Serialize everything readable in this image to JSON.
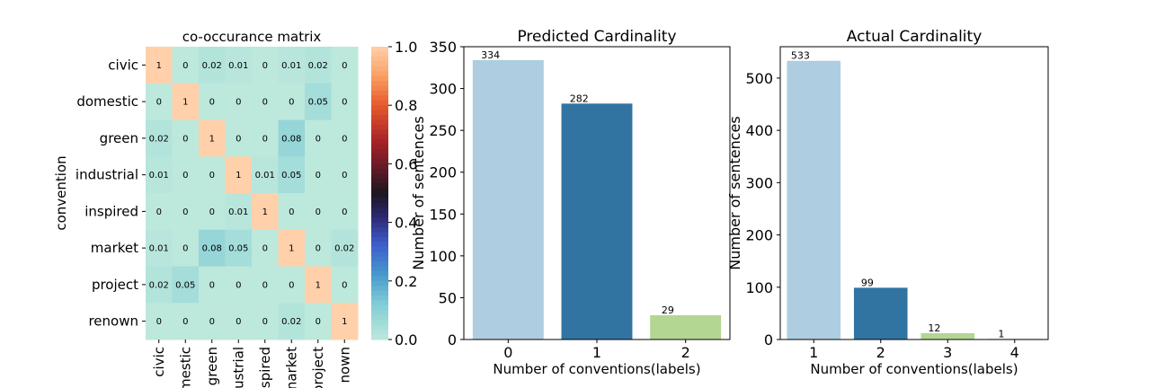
{
  "chart_data": [
    {
      "type": "heatmap",
      "title": "co-occurance matrix",
      "ylabel": "convention",
      "xlabel": "",
      "row_labels": [
        "civic",
        "domestic",
        "green",
        "industrial",
        "inspired",
        "market",
        "project",
        "renown"
      ],
      "col_labels": [
        "civic",
        "mestic",
        "green",
        "ustrial",
        "spired",
        "narket",
        "project",
        "nown"
      ],
      "values": [
        [
          1,
          0,
          0.02,
          0.01,
          0,
          0.01,
          0.02,
          0
        ],
        [
          0,
          1,
          0,
          0,
          0,
          0,
          0.05,
          0
        ],
        [
          0.02,
          0,
          1,
          0,
          0,
          0.08,
          0,
          0
        ],
        [
          0.01,
          0,
          0,
          1,
          0.01,
          0.05,
          0,
          0
        ],
        [
          0,
          0,
          0,
          0.01,
          1,
          0,
          0,
          0
        ],
        [
          0.01,
          0,
          0.08,
          0.05,
          0,
          1,
          0,
          0.02
        ],
        [
          0.02,
          0.05,
          0,
          0,
          0,
          0,
          1,
          0
        ],
        [
          0,
          0,
          0,
          0,
          0,
          0.02,
          0,
          1
        ]
      ],
      "colorbar": {
        "min": 0.0,
        "max": 1.0,
        "ticks": [
          "0.0",
          "0.2",
          "0.4",
          "0.6",
          "0.8",
          "1.0"
        ],
        "colormap": "icefire"
      }
    },
    {
      "type": "bar",
      "title": "Predicted Cardinality",
      "xlabel": "Number of conventions(labels)",
      "ylabel": "Number of sentences",
      "categories": [
        "0",
        "1",
        "2"
      ],
      "values": [
        334,
        282,
        29
      ],
      "colors": [
        "#aecde1",
        "#3274a1",
        "#b3d693"
      ],
      "ylim": [
        0,
        350
      ],
      "yticks": [
        0,
        50,
        100,
        150,
        200,
        250,
        300,
        350
      ]
    },
    {
      "type": "bar",
      "title": "Actual Cardinality",
      "xlabel": "Number of conventions(labels)",
      "ylabel": "Number of sentences",
      "categories": [
        "1",
        "2",
        "3",
        "4"
      ],
      "values": [
        533,
        99,
        12,
        1
      ],
      "colors": [
        "#aecde1",
        "#3274a1",
        "#b3d693",
        "#3a923a"
      ],
      "ylim": [
        0,
        560
      ],
      "yticks": [
        0,
        100,
        200,
        300,
        400,
        500
      ]
    }
  ]
}
